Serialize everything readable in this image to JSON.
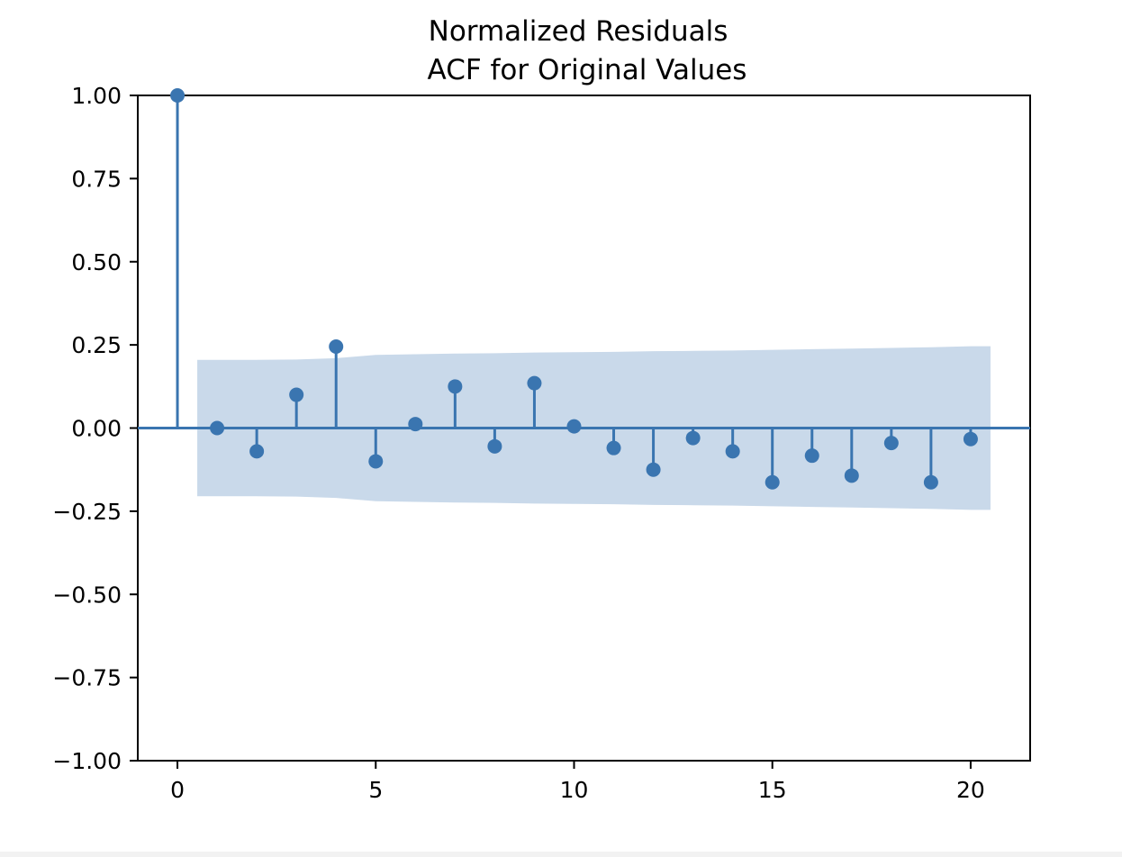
{
  "chart_data": {
    "type": "scatter",
    "style": "stem",
    "title_line1": "Normalized Residuals",
    "title_line2": "ACF for Original Values",
    "xlabel": "",
    "ylabel": "",
    "xlim": [
      -1,
      21.5
    ],
    "ylim": [
      -1.0,
      1.0
    ],
    "x_ticks": [
      0,
      5,
      10,
      15,
      20
    ],
    "y_ticks": [
      1.0,
      0.75,
      0.5,
      0.25,
      0.0,
      -0.25,
      -0.5,
      -0.75,
      -1.0
    ],
    "y_tick_labels": [
      "1.00",
      "0.75",
      "0.50",
      "0.25",
      "0.00",
      "−0.25",
      "−0.50",
      "−0.75",
      "−1.00"
    ],
    "grid": false,
    "lags": [
      0,
      1,
      2,
      3,
      4,
      5,
      6,
      7,
      8,
      9,
      10,
      11,
      12,
      13,
      14,
      15,
      16,
      17,
      18,
      19,
      20
    ],
    "acf": [
      1.0,
      0.0,
      -0.07,
      0.1,
      0.245,
      -0.1,
      0.012,
      0.125,
      -0.055,
      0.135,
      0.005,
      -0.06,
      -0.125,
      -0.03,
      -0.07,
      -0.163,
      -0.083,
      -0.143,
      -0.045,
      -0.163,
      -0.033
    ],
    "confidence_band": {
      "x": [
        0.5,
        1,
        2,
        3,
        4,
        5,
        6,
        7,
        8,
        9,
        10,
        11,
        12,
        13,
        14,
        15,
        16,
        17,
        18,
        19,
        20,
        20.5
      ],
      "upper": [
        0.205,
        0.205,
        0.205,
        0.206,
        0.21,
        0.22,
        0.222,
        0.224,
        0.225,
        0.227,
        0.228,
        0.229,
        0.231,
        0.232,
        0.233,
        0.235,
        0.237,
        0.239,
        0.241,
        0.243,
        0.246,
        0.246
      ],
      "lower": [
        -0.205,
        -0.205,
        -0.205,
        -0.206,
        -0.21,
        -0.22,
        -0.222,
        -0.224,
        -0.225,
        -0.227,
        -0.228,
        -0.229,
        -0.231,
        -0.232,
        -0.233,
        -0.235,
        -0.237,
        -0.239,
        -0.241,
        -0.243,
        -0.246,
        -0.246
      ]
    },
    "colors": {
      "stem": "#3a75b0",
      "band": "#c9d9ea",
      "axes": "#000000",
      "background": "#ffffff"
    }
  }
}
